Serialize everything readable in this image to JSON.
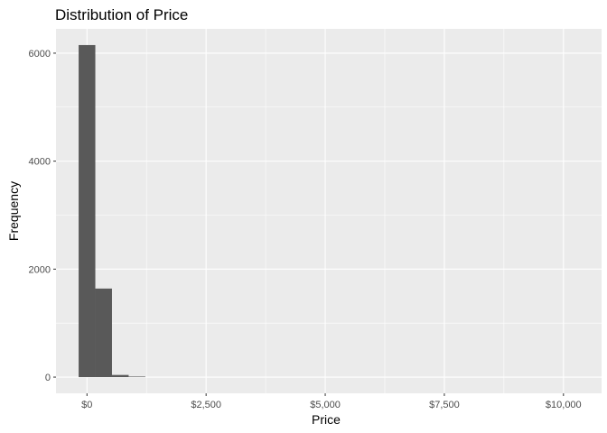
{
  "chart_data": {
    "type": "bar",
    "title": "Distribution of Price",
    "xlabel": "Price",
    "ylabel": "Frequency",
    "xlim": [
      -650,
      10800
    ],
    "ylim": [
      -300,
      6450
    ],
    "x_ticks": [
      {
        "value": 0,
        "label": "$0"
      },
      {
        "value": 2500,
        "label": "$2,500"
      },
      {
        "value": 5000,
        "label": "$5,000"
      },
      {
        "value": 7500,
        "label": "$7,500"
      },
      {
        "value": 10000,
        "label": "$10,000"
      }
    ],
    "y_ticks": [
      {
        "value": 0,
        "label": "0"
      },
      {
        "value": 2000,
        "label": "2000"
      },
      {
        "value": 4000,
        "label": "4000"
      },
      {
        "value": 6000,
        "label": "6000"
      }
    ],
    "bins": [
      {
        "x_start": -175,
        "x_end": 175,
        "count": 6150
      },
      {
        "x_start": 175,
        "x_end": 525,
        "count": 1640
      },
      {
        "x_start": 525,
        "x_end": 875,
        "count": 40
      },
      {
        "x_start": 875,
        "x_end": 1225,
        "count": 10
      }
    ],
    "grid": true,
    "colors": {
      "panel": "#ebebeb",
      "grid_major": "#ffffff",
      "bar": "#595959"
    }
  }
}
